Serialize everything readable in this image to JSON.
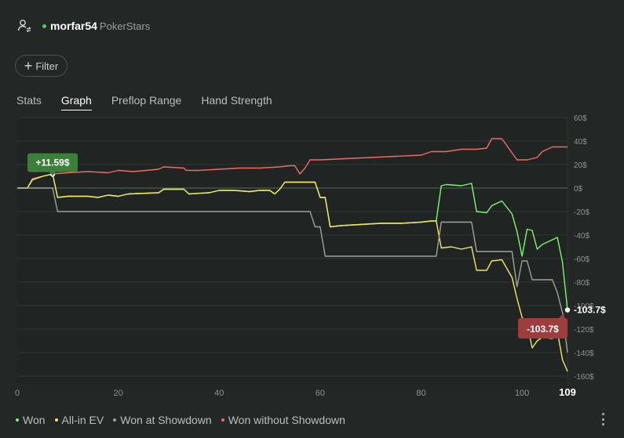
{
  "header": {
    "username": "morfar54",
    "site": "PokerStars"
  },
  "filter": {
    "label": "Filter"
  },
  "tabs": [
    {
      "label": "Stats"
    },
    {
      "label": "Graph"
    },
    {
      "label": "Preflop Range"
    },
    {
      "label": "Hand Strength"
    }
  ],
  "legend": [
    {
      "label": "Won",
      "color": "#7cf96a"
    },
    {
      "label": "All-in EV",
      "color": "#f6e85a"
    },
    {
      "label": "Won at Showdown",
      "color": "#a0a0a0"
    },
    {
      "label": "Won without Showdown",
      "color": "#f26a62"
    }
  ],
  "colors": {
    "max_label_bg": "#3c7f3a",
    "end_label_bg": "#9c3e3e"
  },
  "chart_data": {
    "type": "line",
    "xlim": [
      0,
      109
    ],
    "ylim": [
      -160,
      60
    ],
    "x_ticks": [
      "0",
      "20",
      "40",
      "60",
      "80",
      "100"
    ],
    "x_end_label": "109",
    "y_ticks": [
      "60$",
      "40$",
      "20$",
      "0$",
      "-20$",
      "-40$",
      "-60$",
      "-80$",
      "-100$",
      "-120$",
      "-140$",
      "-160$"
    ],
    "y_tick_values": [
      60,
      40,
      20,
      0,
      -20,
      -40,
      -60,
      -80,
      -100,
      -120,
      -140,
      -160
    ],
    "max_label": "+11.59$",
    "max_point": {
      "x": 7,
      "y": 11.59
    },
    "end_label_right": "-103.7$",
    "end_label_box": "-103.7$",
    "end_point": {
      "x": 109,
      "y": -103.7
    },
    "series": [
      {
        "name": "Won without Showdown",
        "color": "#f26a62",
        "points": [
          [
            0,
            0
          ],
          [
            2,
            0
          ],
          [
            3,
            8
          ],
          [
            5,
            10
          ],
          [
            7,
            12
          ],
          [
            10,
            13
          ],
          [
            14,
            14
          ],
          [
            18,
            13
          ],
          [
            20,
            15
          ],
          [
            23,
            14
          ],
          [
            28,
            16
          ],
          [
            29,
            18
          ],
          [
            33,
            17
          ],
          [
            33.5,
            15
          ],
          [
            36,
            15
          ],
          [
            40,
            16
          ],
          [
            44,
            17
          ],
          [
            48,
            17
          ],
          [
            52,
            18
          ],
          [
            54,
            19
          ],
          [
            55,
            19
          ],
          [
            56,
            12
          ],
          [
            57,
            17
          ],
          [
            58,
            24
          ],
          [
            60,
            24
          ],
          [
            65,
            25
          ],
          [
            70,
            26
          ],
          [
            75,
            27
          ],
          [
            80,
            28
          ],
          [
            82,
            31
          ],
          [
            85,
            31
          ],
          [
            88,
            33
          ],
          [
            91,
            33
          ],
          [
            93,
            34
          ],
          [
            94,
            42
          ],
          [
            96,
            42
          ],
          [
            99,
            24
          ],
          [
            101,
            24
          ],
          [
            103,
            26
          ],
          [
            104,
            31
          ],
          [
            106,
            35
          ],
          [
            108,
            35
          ],
          [
            109,
            35
          ]
        ]
      },
      {
        "name": "Won",
        "color": "#7cf96a",
        "points": [
          [
            0,
            0
          ],
          [
            2,
            0
          ],
          [
            3,
            7
          ],
          [
            5,
            10
          ],
          [
            7,
            12
          ],
          [
            8,
            -8
          ],
          [
            10,
            -7
          ],
          [
            14,
            -7
          ],
          [
            16,
            -8
          ],
          [
            18,
            -6
          ],
          [
            20,
            -7
          ],
          [
            22,
            -5
          ],
          [
            28,
            -4
          ],
          [
            29,
            -1
          ],
          [
            33,
            -1
          ],
          [
            34,
            -5
          ],
          [
            38,
            -4
          ],
          [
            40,
            -2
          ],
          [
            43,
            -2
          ],
          [
            46,
            -3
          ],
          [
            48,
            -2
          ],
          [
            50,
            -2
          ],
          [
            51,
            -5
          ],
          [
            52,
            -1
          ],
          [
            53,
            5
          ],
          [
            56,
            5
          ],
          [
            59,
            5
          ],
          [
            60,
            -8
          ],
          [
            61,
            -8
          ],
          [
            62,
            -33
          ],
          [
            64,
            -32
          ],
          [
            68,
            -31
          ],
          [
            72,
            -30
          ],
          [
            76,
            -30
          ],
          [
            80,
            -29
          ],
          [
            82,
            -28
          ],
          [
            83,
            -28
          ],
          [
            84,
            2
          ],
          [
            85,
            3
          ],
          [
            88,
            2
          ],
          [
            90,
            4
          ],
          [
            91,
            -20
          ],
          [
            93,
            -21
          ],
          [
            94,
            -15
          ],
          [
            96,
            -11
          ],
          [
            98,
            -22
          ],
          [
            99,
            -37
          ],
          [
            100,
            -58
          ],
          [
            101,
            -35
          ],
          [
            102,
            -36
          ],
          [
            103,
            -52
          ],
          [
            104,
            -48
          ],
          [
            106,
            -44
          ],
          [
            107,
            -42
          ],
          [
            108,
            -63
          ],
          [
            109,
            -103.7
          ]
        ]
      },
      {
        "name": "All-in EV",
        "color": "#f6e85a",
        "points": [
          [
            0,
            0
          ],
          [
            2,
            0
          ],
          [
            3,
            7
          ],
          [
            5,
            10
          ],
          [
            7,
            12
          ],
          [
            8,
            -8
          ],
          [
            10,
            -7
          ],
          [
            14,
            -7
          ],
          [
            16,
            -8
          ],
          [
            18,
            -6
          ],
          [
            20,
            -7
          ],
          [
            22,
            -5
          ],
          [
            28,
            -4
          ],
          [
            29,
            -1
          ],
          [
            33,
            -1
          ],
          [
            34,
            -5
          ],
          [
            38,
            -4
          ],
          [
            40,
            -2
          ],
          [
            43,
            -2
          ],
          [
            46,
            -3
          ],
          [
            48,
            -2
          ],
          [
            50,
            -2
          ],
          [
            51,
            -5
          ],
          [
            52,
            -1
          ],
          [
            53,
            5
          ],
          [
            56,
            5
          ],
          [
            59,
            5
          ],
          [
            60,
            -8
          ],
          [
            61,
            -8
          ],
          [
            62,
            -33
          ],
          [
            64,
            -32
          ],
          [
            68,
            -31
          ],
          [
            72,
            -30
          ],
          [
            76,
            -30
          ],
          [
            80,
            -29
          ],
          [
            82,
            -28
          ],
          [
            83,
            -28
          ],
          [
            84,
            -51
          ],
          [
            86,
            -50
          ],
          [
            88,
            -52
          ],
          [
            90,
            -50
          ],
          [
            91,
            -70
          ],
          [
            93,
            -70
          ],
          [
            94,
            -62
          ],
          [
            96,
            -61
          ],
          [
            98,
            -76
          ],
          [
            99,
            -94
          ],
          [
            100,
            -110
          ],
          [
            101,
            -116
          ],
          [
            102,
            -136
          ],
          [
            103,
            -130
          ],
          [
            104,
            -127
          ],
          [
            106,
            -128
          ],
          [
            107,
            -122
          ],
          [
            108,
            -146
          ],
          [
            109,
            -156
          ]
        ]
      },
      {
        "name": "Won at Showdown",
        "color": "#a0a0a0",
        "points": [
          [
            0,
            0
          ],
          [
            7,
            0
          ],
          [
            8,
            -20
          ],
          [
            58,
            -20
          ],
          [
            59,
            -33
          ],
          [
            60,
            -33
          ],
          [
            61,
            -58
          ],
          [
            62,
            -58
          ],
          [
            83,
            -58
          ],
          [
            84,
            -29
          ],
          [
            90,
            -29
          ],
          [
            91,
            -54
          ],
          [
            98,
            -54
          ],
          [
            99,
            -84
          ],
          [
            100,
            -62
          ],
          [
            101,
            -62
          ],
          [
            102,
            -78
          ],
          [
            106,
            -78
          ],
          [
            107,
            -89
          ],
          [
            108,
            -106
          ],
          [
            109,
            -140
          ]
        ]
      }
    ]
  }
}
